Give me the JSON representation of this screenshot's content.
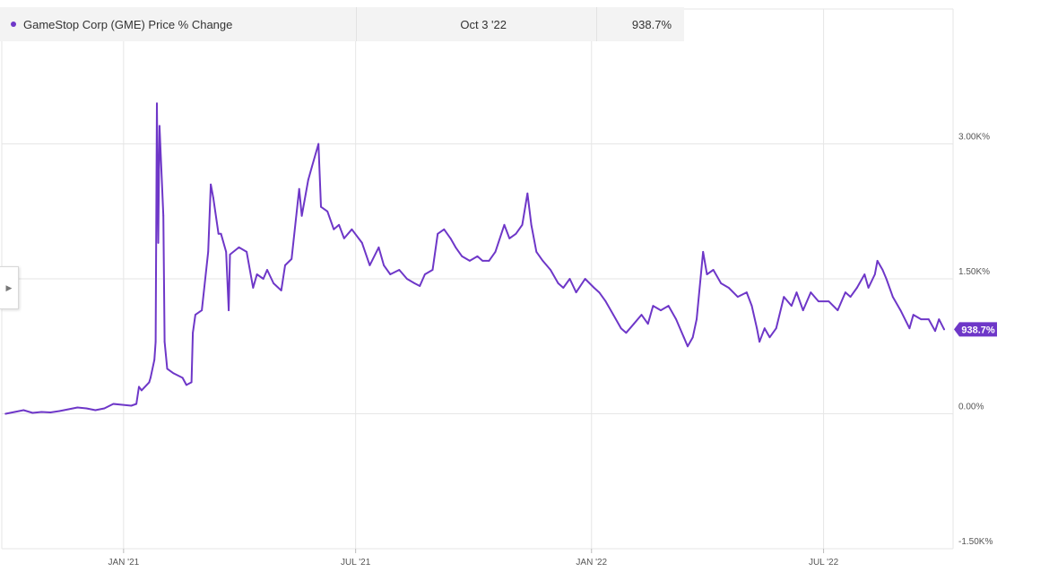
{
  "legend": {
    "series_name": "GameStop Corp (GME) Price % Change",
    "date": "Oct 3 '22",
    "value": "938.7%"
  },
  "colors": {
    "series": "#6e37c8",
    "grid": "#e6e6e6",
    "axis_text": "#555555"
  },
  "icons": {
    "collapse": "triangle-right-icon"
  },
  "chart_data": {
    "type": "line",
    "title": "",
    "xlabel": "",
    "ylabel": "",
    "x_ticks": [
      "JAN '21",
      "JUL '21",
      "JAN '22",
      "JUL '22"
    ],
    "y_ticks": [
      "-1.50K%",
      "0.00%",
      "1.50K%",
      "3.00K%"
    ],
    "y_tick_values": [
      -1500,
      0,
      1500,
      3000
    ],
    "ylim": [
      -1500,
      4500
    ],
    "xlim": [
      "2020-09-28",
      "2022-10-10"
    ],
    "grid": true,
    "last_value_label": "938.7%",
    "series": [
      {
        "name": "GameStop Corp (GME) Price % Change",
        "points": [
          [
            "2020-10-01",
            0
          ],
          [
            "2020-10-08",
            20
          ],
          [
            "2020-10-15",
            40
          ],
          [
            "2020-10-22",
            10
          ],
          [
            "2020-10-29",
            20
          ],
          [
            "2020-11-05",
            15
          ],
          [
            "2020-11-12",
            30
          ],
          [
            "2020-11-19",
            50
          ],
          [
            "2020-11-26",
            70
          ],
          [
            "2020-12-03",
            60
          ],
          [
            "2020-12-10",
            40
          ],
          [
            "2020-12-17",
            60
          ],
          [
            "2020-12-24",
            110
          ],
          [
            "2020-12-31",
            100
          ],
          [
            "2021-01-07",
            90
          ],
          [
            "2021-01-11",
            110
          ],
          [
            "2021-01-13",
            300
          ],
          [
            "2021-01-15",
            260
          ],
          [
            "2021-01-19",
            320
          ],
          [
            "2021-01-21",
            350
          ],
          [
            "2021-01-22",
            400
          ],
          [
            "2021-01-25",
            600
          ],
          [
            "2021-01-26",
            800
          ],
          [
            "2021-01-27",
            3450
          ],
          [
            "2021-01-28",
            1900
          ],
          [
            "2021-01-29",
            3200
          ],
          [
            "2021-02-01",
            2200
          ],
          [
            "2021-02-02",
            800
          ],
          [
            "2021-02-04",
            500
          ],
          [
            "2021-02-09",
            450
          ],
          [
            "2021-02-16",
            400
          ],
          [
            "2021-02-19",
            320
          ],
          [
            "2021-02-23",
            350
          ],
          [
            "2021-02-24",
            900
          ],
          [
            "2021-02-26",
            1100
          ],
          [
            "2021-03-03",
            1150
          ],
          [
            "2021-03-08",
            1800
          ],
          [
            "2021-03-10",
            2550
          ],
          [
            "2021-03-12",
            2400
          ],
          [
            "2021-03-16",
            2000
          ],
          [
            "2021-03-18",
            2000
          ],
          [
            "2021-03-22",
            1800
          ],
          [
            "2021-03-24",
            1150
          ],
          [
            "2021-03-25",
            1770
          ],
          [
            "2021-04-01",
            1850
          ],
          [
            "2021-04-07",
            1800
          ],
          [
            "2021-04-12",
            1400
          ],
          [
            "2021-04-15",
            1550
          ],
          [
            "2021-04-20",
            1500
          ],
          [
            "2021-04-23",
            1600
          ],
          [
            "2021-04-28",
            1450
          ],
          [
            "2021-05-04",
            1370
          ],
          [
            "2021-05-07",
            1650
          ],
          [
            "2021-05-12",
            1720
          ],
          [
            "2021-05-18",
            2500
          ],
          [
            "2021-05-20",
            2200
          ],
          [
            "2021-05-25",
            2600
          ],
          [
            "2021-05-28",
            2750
          ],
          [
            "2021-06-02",
            3000
          ],
          [
            "2021-06-04",
            2300
          ],
          [
            "2021-06-09",
            2250
          ],
          [
            "2021-06-14",
            2050
          ],
          [
            "2021-06-18",
            2100
          ],
          [
            "2021-06-22",
            1950
          ],
          [
            "2021-06-28",
            2050
          ],
          [
            "2021-07-06",
            1900
          ],
          [
            "2021-07-12",
            1650
          ],
          [
            "2021-07-19",
            1850
          ],
          [
            "2021-07-23",
            1650
          ],
          [
            "2021-07-28",
            1550
          ],
          [
            "2021-08-04",
            1600
          ],
          [
            "2021-08-10",
            1500
          ],
          [
            "2021-08-16",
            1450
          ],
          [
            "2021-08-20",
            1420
          ],
          [
            "2021-08-24",
            1550
          ],
          [
            "2021-08-30",
            1600
          ],
          [
            "2021-09-03",
            2000
          ],
          [
            "2021-09-08",
            2050
          ],
          [
            "2021-09-13",
            1950
          ],
          [
            "2021-09-17",
            1850
          ],
          [
            "2021-09-22",
            1750
          ],
          [
            "2021-09-28",
            1700
          ],
          [
            "2021-10-04",
            1750
          ],
          [
            "2021-10-08",
            1700
          ],
          [
            "2021-10-13",
            1700
          ],
          [
            "2021-10-18",
            1800
          ],
          [
            "2021-10-25",
            2100
          ],
          [
            "2021-10-29",
            1950
          ],
          [
            "2021-11-03",
            2000
          ],
          [
            "2021-11-08",
            2100
          ],
          [
            "2021-11-12",
            2450
          ],
          [
            "2021-11-15",
            2100
          ],
          [
            "2021-11-19",
            1800
          ],
          [
            "2021-11-24",
            1700
          ],
          [
            "2021-11-30",
            1600
          ],
          [
            "2021-12-06",
            1450
          ],
          [
            "2021-12-10",
            1400
          ],
          [
            "2021-12-15",
            1500
          ],
          [
            "2021-12-20",
            1350
          ],
          [
            "2021-12-27",
            1500
          ],
          [
            "2022-01-03",
            1400
          ],
          [
            "2022-01-07",
            1350
          ],
          [
            "2022-01-12",
            1250
          ],
          [
            "2022-01-18",
            1100
          ],
          [
            "2022-01-24",
            950
          ],
          [
            "2022-01-28",
            900
          ],
          [
            "2022-02-03",
            1000
          ],
          [
            "2022-02-09",
            1100
          ],
          [
            "2022-02-14",
            1000
          ],
          [
            "2022-02-18",
            1200
          ],
          [
            "2022-02-24",
            1150
          ],
          [
            "2022-03-02",
            1200
          ],
          [
            "2022-03-08",
            1050
          ],
          [
            "2022-03-14",
            850
          ],
          [
            "2022-03-17",
            750
          ],
          [
            "2022-03-21",
            850
          ],
          [
            "2022-03-24",
            1050
          ],
          [
            "2022-03-29",
            1800
          ],
          [
            "2022-04-01",
            1550
          ],
          [
            "2022-04-06",
            1600
          ],
          [
            "2022-04-12",
            1450
          ],
          [
            "2022-04-18",
            1400
          ],
          [
            "2022-04-25",
            1300
          ],
          [
            "2022-05-02",
            1350
          ],
          [
            "2022-05-06",
            1200
          ],
          [
            "2022-05-10",
            950
          ],
          [
            "2022-05-12",
            800
          ],
          [
            "2022-05-16",
            950
          ],
          [
            "2022-05-20",
            850
          ],
          [
            "2022-05-25",
            950
          ],
          [
            "2022-05-31",
            1300
          ],
          [
            "2022-06-06",
            1200
          ],
          [
            "2022-06-10",
            1350
          ],
          [
            "2022-06-15",
            1150
          ],
          [
            "2022-06-21",
            1350
          ],
          [
            "2022-06-27",
            1250
          ],
          [
            "2022-07-05",
            1250
          ],
          [
            "2022-07-12",
            1150
          ],
          [
            "2022-07-18",
            1350
          ],
          [
            "2022-07-22",
            1300
          ],
          [
            "2022-07-27",
            1400
          ],
          [
            "2022-08-02",
            1550
          ],
          [
            "2022-08-05",
            1400
          ],
          [
            "2022-08-10",
            1550
          ],
          [
            "2022-08-12",
            1700
          ],
          [
            "2022-08-16",
            1600
          ],
          [
            "2022-08-19",
            1500
          ],
          [
            "2022-08-24",
            1300
          ],
          [
            "2022-08-30",
            1150
          ],
          [
            "2022-09-06",
            950
          ],
          [
            "2022-09-09",
            1100
          ],
          [
            "2022-09-15",
            1050
          ],
          [
            "2022-09-21",
            1050
          ],
          [
            "2022-09-26",
            920
          ],
          [
            "2022-09-29",
            1050
          ],
          [
            "2022-10-03",
            938.7
          ]
        ]
      }
    ]
  }
}
